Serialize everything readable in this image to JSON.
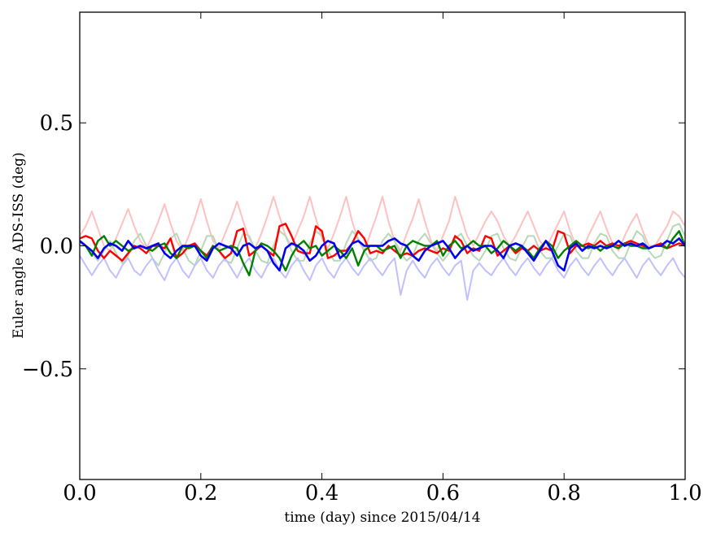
{
  "chart_data": {
    "type": "line",
    "title": "",
    "xlabel": "time (day) since 2015/04/14",
    "ylabel": "Euler angle ADS-ISS (deg)",
    "xlim": [
      0.0,
      1.0
    ],
    "ylim": [
      -0.95,
      0.95
    ],
    "grid": false,
    "legend": "none",
    "x_ticks": [
      0.0,
      0.2,
      0.4,
      0.6,
      0.8,
      1.0
    ],
    "x_tick_labels": [
      "0.0",
      "0.2",
      "0.4",
      "0.6",
      "0.8",
      "1.0"
    ],
    "y_ticks": [
      -0.5,
      0.0,
      0.5
    ],
    "y_tick_labels": [
      "−0.5",
      "0.0",
      "0.5"
    ],
    "x": [
      0.0,
      0.01,
      0.02,
      0.03,
      0.04,
      0.05,
      0.06,
      0.07,
      0.08,
      0.09,
      0.1,
      0.11,
      0.12,
      0.13,
      0.14,
      0.15,
      0.16,
      0.17,
      0.18,
      0.19,
      0.2,
      0.21,
      0.22,
      0.23,
      0.24,
      0.25,
      0.26,
      0.27,
      0.28,
      0.29,
      0.3,
      0.31,
      0.32,
      0.33,
      0.34,
      0.35,
      0.36,
      0.37,
      0.38,
      0.39,
      0.4,
      0.41,
      0.42,
      0.43,
      0.44,
      0.45,
      0.46,
      0.47,
      0.48,
      0.49,
      0.5,
      0.51,
      0.52,
      0.53,
      0.54,
      0.55,
      0.56,
      0.57,
      0.58,
      0.59,
      0.6,
      0.61,
      0.62,
      0.63,
      0.64,
      0.65,
      0.66,
      0.67,
      0.68,
      0.69,
      0.7,
      0.71,
      0.72,
      0.73,
      0.74,
      0.75,
      0.76,
      0.77,
      0.78,
      0.79,
      0.8,
      0.81,
      0.82,
      0.83,
      0.84,
      0.85,
      0.86,
      0.87,
      0.88,
      0.89,
      0.9,
      0.91,
      0.92,
      0.93,
      0.94,
      0.95,
      0.96,
      0.97,
      0.98,
      0.99,
      1.0
    ],
    "series": [
      {
        "color": "#ffc0c0",
        "width": 2,
        "values": [
          0.04,
          0.08,
          0.14,
          0.07,
          0.0,
          -0.02,
          0.03,
          0.09,
          0.15,
          0.08,
          0.02,
          -0.01,
          0.04,
          0.1,
          0.17,
          0.09,
          0.02,
          -0.02,
          0.04,
          0.11,
          0.19,
          0.1,
          0.02,
          -0.01,
          0.05,
          0.11,
          0.18,
          0.1,
          0.03,
          -0.01,
          0.05,
          0.12,
          0.2,
          0.12,
          0.04,
          0.0,
          0.06,
          0.12,
          0.2,
          0.11,
          0.03,
          -0.01,
          0.05,
          0.12,
          0.2,
          0.1,
          0.02,
          -0.02,
          0.05,
          0.12,
          0.2,
          0.1,
          0.02,
          -0.02,
          0.05,
          0.11,
          0.19,
          0.1,
          0.02,
          -0.02,
          0.04,
          0.1,
          0.2,
          0.12,
          0.04,
          0.0,
          0.05,
          0.1,
          0.14,
          0.1,
          0.04,
          0.0,
          0.04,
          0.09,
          0.14,
          0.08,
          0.02,
          -0.01,
          0.04,
          0.09,
          0.14,
          0.06,
          0.0,
          -0.02,
          0.04,
          0.09,
          0.14,
          0.07,
          0.01,
          -0.02,
          0.04,
          0.09,
          0.13,
          0.06,
          0.0,
          0.0,
          0.04,
          0.08,
          0.14,
          0.12,
          0.08
        ]
      },
      {
        "color": "#b6d8b6",
        "width": 2,
        "values": [
          0.01,
          0.0,
          -0.03,
          -0.06,
          -0.02,
          0.02,
          -0.03,
          -0.07,
          -0.04,
          0.02,
          0.05,
          0.0,
          -0.05,
          -0.08,
          -0.03,
          0.03,
          0.05,
          -0.01,
          -0.06,
          -0.08,
          -0.02,
          0.04,
          0.04,
          -0.02,
          -0.06,
          -0.07,
          -0.01,
          0.05,
          0.04,
          -0.02,
          -0.06,
          -0.07,
          0.0,
          0.06,
          0.04,
          -0.02,
          -0.06,
          -0.06,
          0.01,
          0.06,
          0.04,
          -0.02,
          -0.06,
          -0.06,
          0.01,
          0.06,
          0.03,
          -0.02,
          -0.06,
          -0.05,
          0.02,
          0.05,
          0.02,
          -0.03,
          -0.06,
          -0.04,
          0.02,
          0.05,
          0.01,
          -0.03,
          -0.06,
          -0.03,
          0.03,
          0.05,
          0.0,
          -0.04,
          -0.06,
          -0.02,
          0.04,
          0.05,
          -0.01,
          -0.05,
          -0.06,
          -0.01,
          0.04,
          0.04,
          -0.02,
          -0.05,
          -0.05,
          0.0,
          0.05,
          0.04,
          -0.02,
          -0.05,
          -0.05,
          0.01,
          0.05,
          0.04,
          -0.02,
          -0.05,
          -0.05,
          0.01,
          0.06,
          0.04,
          -0.02,
          -0.05,
          -0.04,
          0.02,
          0.08,
          0.09,
          0.04
        ]
      },
      {
        "color": "#c0c0ff",
        "width": 2,
        "values": [
          -0.04,
          -0.08,
          -0.12,
          -0.08,
          -0.05,
          -0.1,
          -0.13,
          -0.08,
          -0.05,
          -0.1,
          -0.12,
          -0.08,
          -0.05,
          -0.1,
          -0.14,
          -0.08,
          -0.05,
          -0.1,
          -0.13,
          -0.08,
          -0.05,
          -0.1,
          -0.13,
          -0.08,
          -0.05,
          -0.09,
          -0.13,
          -0.08,
          -0.05,
          -0.1,
          -0.13,
          -0.08,
          -0.05,
          -0.1,
          -0.13,
          -0.08,
          -0.05,
          -0.1,
          -0.14,
          -0.08,
          -0.05,
          -0.1,
          -0.13,
          -0.08,
          -0.05,
          -0.09,
          -0.12,
          -0.08,
          -0.05,
          -0.09,
          -0.12,
          -0.08,
          -0.05,
          -0.2,
          -0.1,
          -0.06,
          -0.1,
          -0.13,
          -0.08,
          -0.05,
          -0.09,
          -0.12,
          -0.08,
          -0.06,
          -0.22,
          -0.1,
          -0.07,
          -0.1,
          -0.12,
          -0.08,
          -0.05,
          -0.09,
          -0.12,
          -0.08,
          -0.05,
          -0.09,
          -0.12,
          -0.08,
          -0.05,
          -0.1,
          -0.13,
          -0.08,
          -0.05,
          -0.09,
          -0.12,
          -0.08,
          -0.05,
          -0.09,
          -0.12,
          -0.08,
          -0.05,
          -0.09,
          -0.13,
          -0.08,
          -0.05,
          -0.09,
          -0.12,
          -0.08,
          -0.05,
          -0.1,
          -0.13
        ]
      },
      {
        "color": "#ff0000",
        "width": 2.4,
        "values": [
          0.03,
          0.04,
          0.03,
          -0.02,
          -0.05,
          -0.02,
          -0.04,
          -0.06,
          -0.03,
          0.0,
          -0.01,
          -0.03,
          0.0,
          0.0,
          -0.01,
          0.03,
          -0.05,
          -0.03,
          0.0,
          0.01,
          -0.02,
          -0.04,
          0.0,
          -0.02,
          -0.05,
          -0.03,
          0.06,
          0.07,
          -0.04,
          -0.02,
          0.0,
          -0.02,
          -0.04,
          0.08,
          0.09,
          0.04,
          -0.02,
          -0.03,
          -0.03,
          0.08,
          0.06,
          -0.05,
          -0.04,
          -0.02,
          -0.02,
          0.01,
          0.06,
          0.03,
          -0.03,
          -0.02,
          -0.03,
          0.0,
          -0.02,
          -0.04,
          -0.03,
          -0.04,
          -0.02,
          -0.01,
          -0.02,
          -0.03,
          -0.01,
          -0.02,
          0.04,
          0.02,
          -0.03,
          -0.01,
          -0.02,
          0.04,
          0.03,
          -0.04,
          -0.02,
          0.0,
          -0.03,
          -0.01,
          -0.02,
          0.0,
          -0.02,
          -0.01,
          -0.02,
          0.06,
          0.05,
          -0.03,
          0.0,
          0.0,
          0.01,
          0.0,
          0.02,
          0.0,
          0.01,
          0.0,
          0.01,
          0.02,
          0.01,
          0.0,
          -0.01,
          0.0,
          0.01,
          -0.01,
          0.0,
          0.01,
          0.0
        ]
      },
      {
        "color": "#008000",
        "width": 2.4,
        "values": [
          0.02,
          0.0,
          -0.04,
          0.02,
          0.04,
          0.0,
          0.02,
          0.0,
          -0.02,
          -0.01,
          0.0,
          -0.01,
          -0.02,
          0.0,
          0.01,
          -0.03,
          -0.05,
          0.0,
          -0.01,
          0.0,
          -0.02,
          -0.05,
          0.0,
          -0.02,
          -0.01,
          0.0,
          -0.01,
          -0.07,
          -0.12,
          -0.02,
          0.01,
          0.0,
          -0.02,
          -0.05,
          -0.1,
          -0.04,
          0.0,
          0.02,
          -0.01,
          0.0,
          -0.04,
          -0.02,
          0.0,
          -0.02,
          -0.05,
          -0.01,
          -0.08,
          -0.02,
          0.0,
          0.0,
          -0.02,
          -0.01,
          0.0,
          -0.05,
          0.0,
          0.02,
          0.01,
          0.0,
          0.0,
          0.02,
          -0.04,
          0.0,
          0.02,
          -0.01,
          0.0,
          0.02,
          0.0,
          0.0,
          -0.03,
          -0.01,
          0.02,
          0.0,
          -0.02,
          0.0,
          -0.02,
          -0.05,
          -0.01,
          0.02,
          0.0,
          -0.05,
          -0.02,
          0.0,
          0.02,
          0.0,
          -0.01,
          0.0,
          -0.02,
          0.0,
          0.0,
          -0.01,
          0.01,
          0.0,
          0.0,
          -0.01,
          -0.01,
          0.0,
          0.0,
          -0.01,
          0.03,
          0.06,
          0.0
        ]
      },
      {
        "color": "#0000ee",
        "width": 2.6,
        "values": [
          0.02,
          0.0,
          -0.02,
          -0.05,
          -0.01,
          0.01,
          0.0,
          -0.02,
          0.02,
          -0.01,
          0.0,
          -0.01,
          0.0,
          0.01,
          -0.03,
          -0.05,
          -0.02,
          0.0,
          0.0,
          0.0,
          -0.04,
          -0.06,
          -0.01,
          0.01,
          0.0,
          -0.01,
          -0.04,
          0.0,
          0.01,
          -0.01,
          0.0,
          -0.02,
          -0.07,
          -0.1,
          -0.01,
          0.01,
          0.0,
          -0.02,
          -0.06,
          -0.04,
          0.0,
          0.02,
          0.01,
          -0.05,
          -0.03,
          0.01,
          0.02,
          0.0,
          0.0,
          0.0,
          0.0,
          0.02,
          0.03,
          0.01,
          0.0,
          -0.04,
          -0.06,
          -0.02,
          0.0,
          0.01,
          0.02,
          -0.01,
          -0.05,
          -0.02,
          0.0,
          -0.02,
          -0.01,
          0.0,
          0.0,
          -0.02,
          -0.05,
          0.0,
          0.01,
          0.0,
          -0.03,
          -0.06,
          -0.02,
          0.02,
          -0.02,
          -0.08,
          -0.1,
          -0.01,
          0.01,
          -0.02,
          0.0,
          -0.01,
          0.0,
          -0.01,
          0.0,
          0.02,
          0.0,
          0.01,
          0.0,
          0.01,
          -0.01,
          0.0,
          0.0,
          0.02,
          0.01,
          0.03,
          0.0
        ]
      }
    ]
  }
}
